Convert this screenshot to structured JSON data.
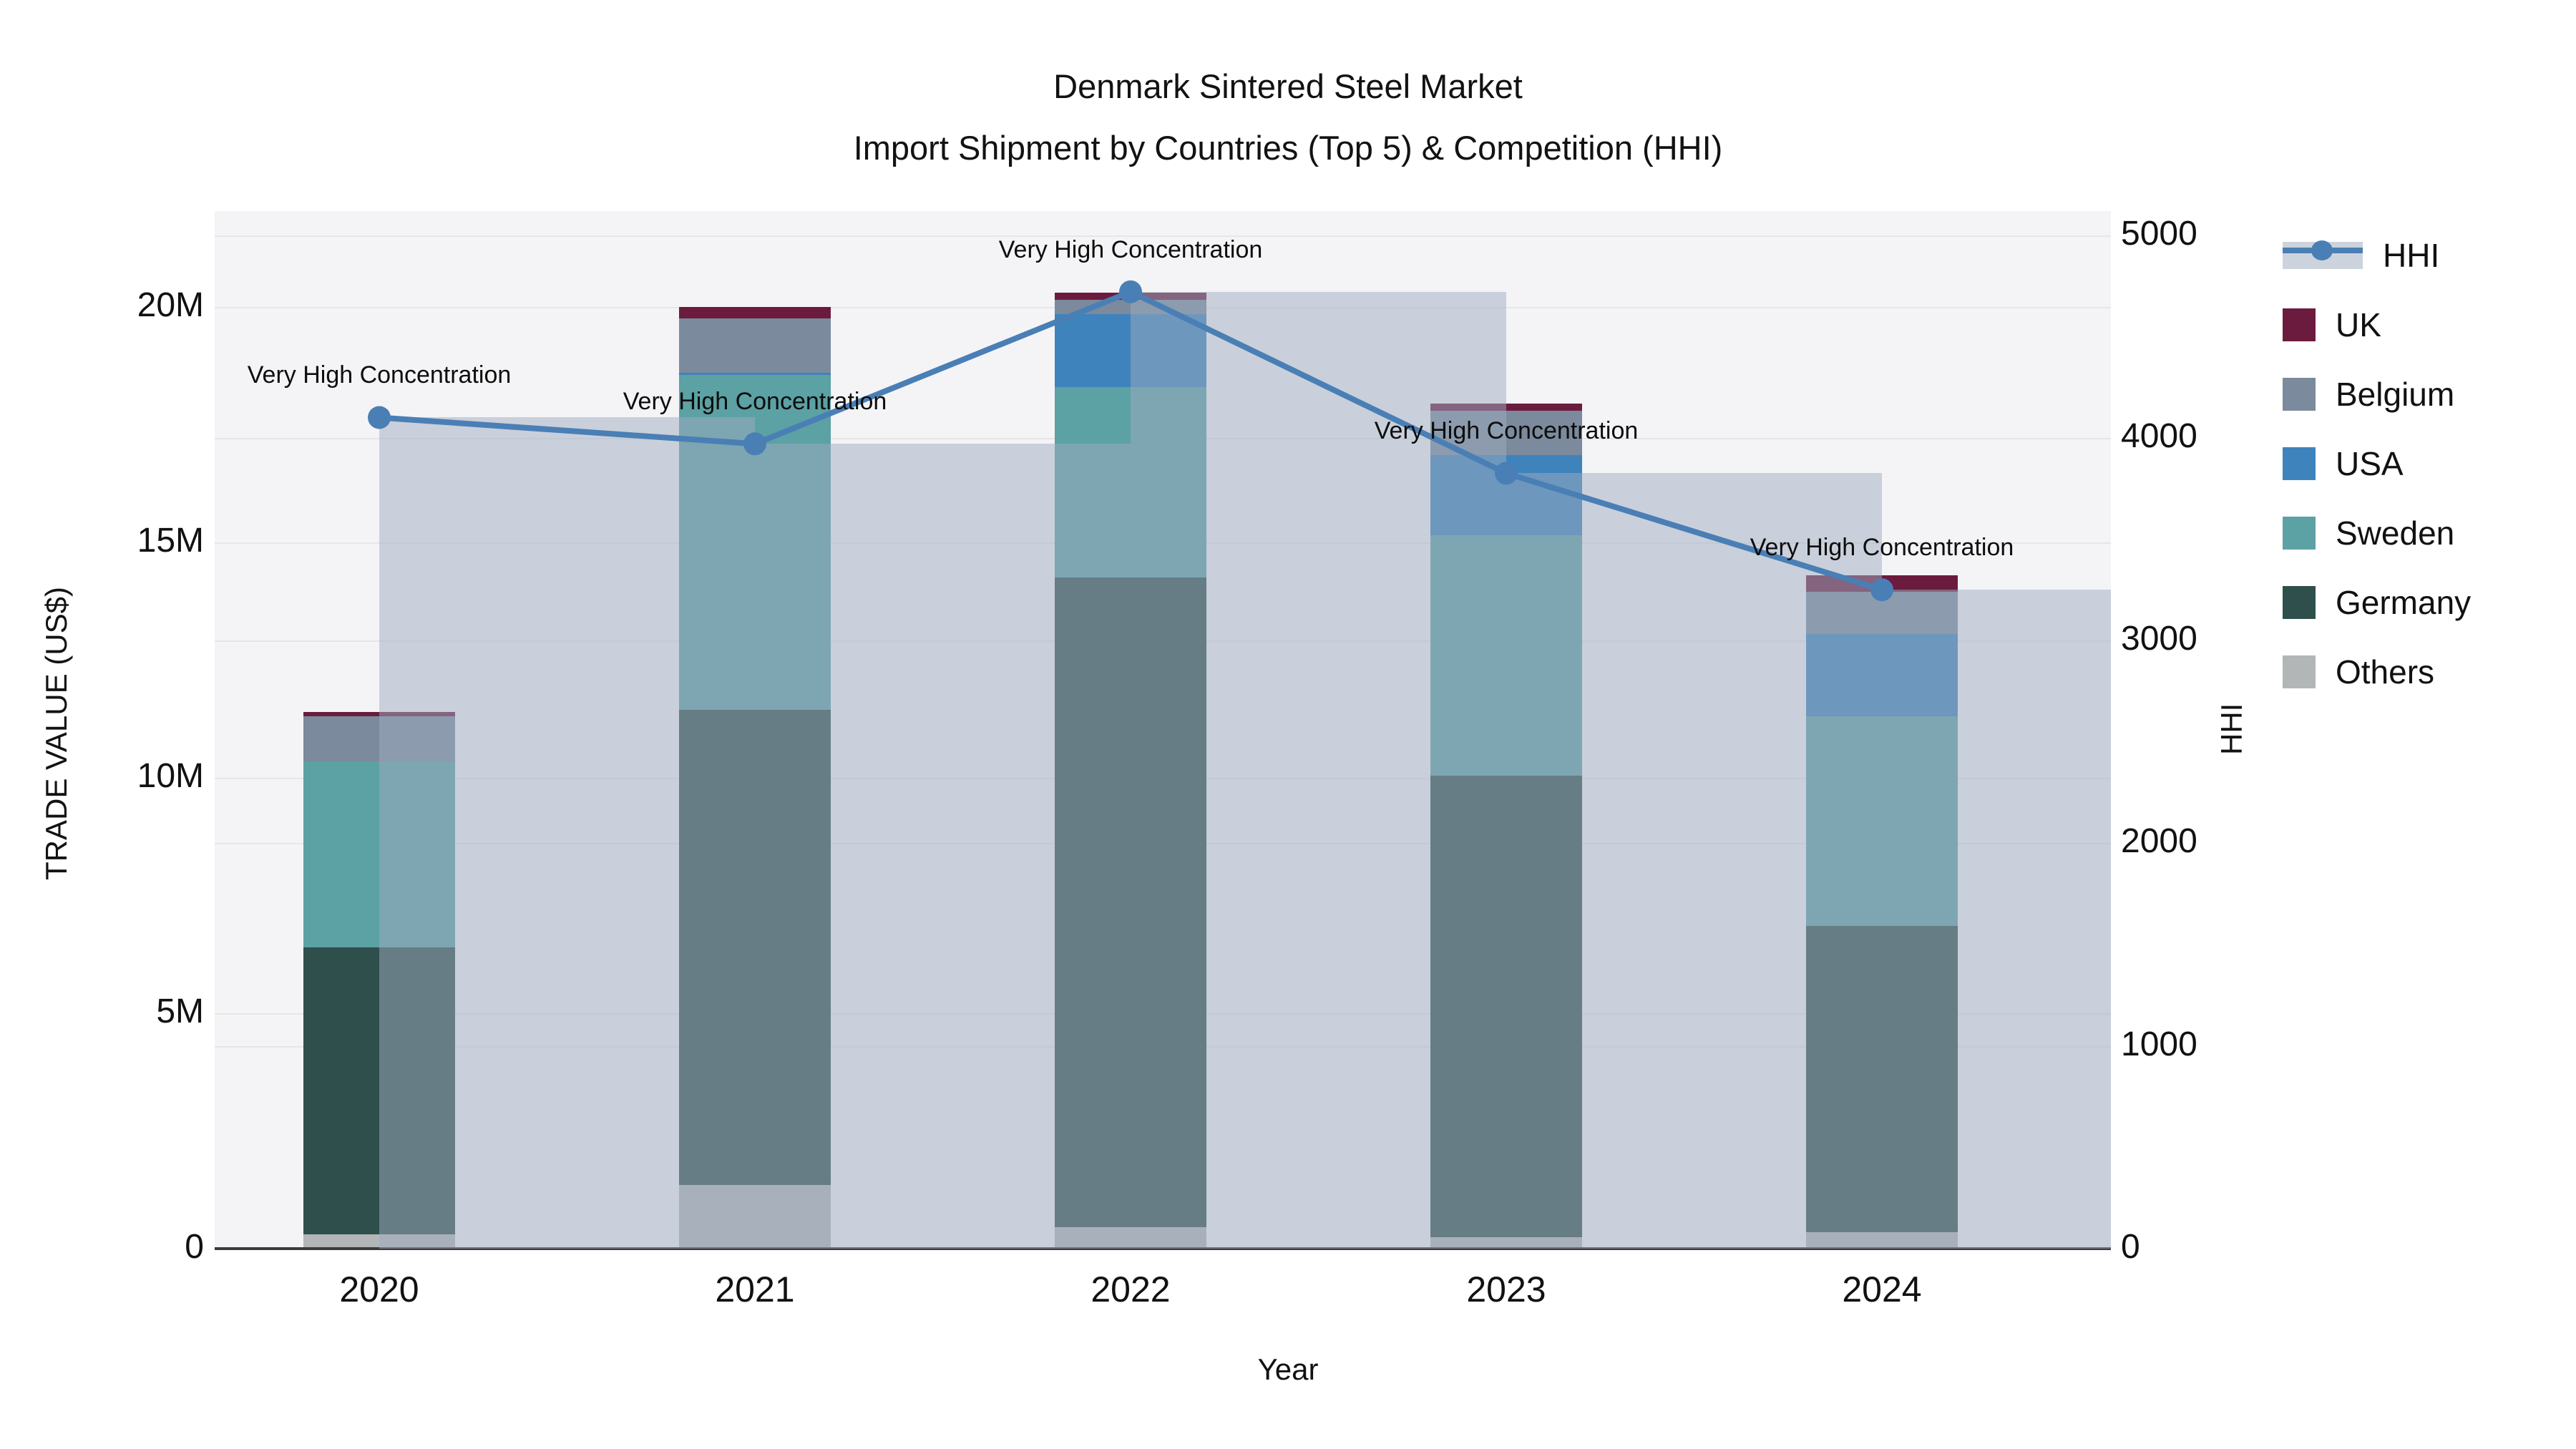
{
  "title": {
    "line1": "Denmark Sintered Steel Market",
    "line2": "Import Shipment by Countries (Top 5) & Competition (HHI)"
  },
  "chart_data": {
    "type": "bar+line",
    "title": "Denmark Sintered Steel Market — Import Shipment by Countries (Top 5) & Competition (HHI)",
    "categories": [
      "2020",
      "2021",
      "2022",
      "2023",
      "2024"
    ],
    "xlabel": "Year",
    "ylabel": "TRADE VALUE (US$)",
    "y2label": "HHI",
    "ylim_millions": [
      0,
      22
    ],
    "y2lim": [
      0,
      5000
    ],
    "grid": true,
    "legend_position": "right",
    "y_tick_labels": [
      "0",
      "5M",
      "10M",
      "15M",
      "20M"
    ],
    "y_tick_values_millions": [
      0,
      5,
      10,
      15,
      20
    ],
    "y2_tick_labels": [
      "0",
      "1000",
      "2000",
      "3000",
      "4000",
      "5000"
    ],
    "y2_tick_values": [
      0,
      1000,
      2000,
      3000,
      4000,
      5000
    ],
    "stack_order_bottom_to_top": [
      "Others",
      "Germany",
      "Sweden",
      "USA",
      "Belgium",
      "UK"
    ],
    "series": [
      {
        "name": "Others",
        "color": "#b2b6b6",
        "values_millions": [
          0.3,
          1.35,
          0.45,
          0.25,
          0.35
        ]
      },
      {
        "name": "Germany",
        "color": "#2f4f4c",
        "values_millions": [
          6.1,
          10.1,
          13.8,
          9.8,
          6.5
        ]
      },
      {
        "name": "Sweden",
        "color": "#5ca1a4",
        "values_millions": [
          3.95,
          7.1,
          4.05,
          5.1,
          4.45
        ]
      },
      {
        "name": "USA",
        "color": "#3f83bd",
        "values_millions": [
          0.0,
          0.05,
          1.55,
          1.7,
          1.75
        ]
      },
      {
        "name": "Belgium",
        "color": "#7b8a9c",
        "values_millions": [
          0.95,
          1.15,
          0.3,
          0.95,
          0.9
        ]
      },
      {
        "name": "UK",
        "color": "#6b1c3e",
        "values_millions": [
          0.1,
          0.25,
          0.15,
          0.15,
          0.35
        ]
      }
    ],
    "totals_millions": [
      11.4,
      20.0,
      20.3,
      17.95,
      14.3
    ],
    "hhi_line": {
      "name": "HHI",
      "line_color": "#4a7fb5",
      "bar_overlay_color": "rgba(158,172,192,0.5)",
      "values": [
        4100,
        3970,
        4720,
        3825,
        3250
      ]
    },
    "annotations": [
      {
        "year": "2020",
        "text": "Very High Concentration"
      },
      {
        "year": "2021",
        "text": "Very High Concentration"
      },
      {
        "year": "2022",
        "text": "Very High Concentration"
      },
      {
        "year": "2023",
        "text": "Very High Concentration"
      },
      {
        "year": "2024",
        "text": "Very High Concentration"
      }
    ],
    "legend_items": [
      "HHI",
      "UK",
      "Belgium",
      "USA",
      "Sweden",
      "Germany",
      "Others"
    ]
  }
}
